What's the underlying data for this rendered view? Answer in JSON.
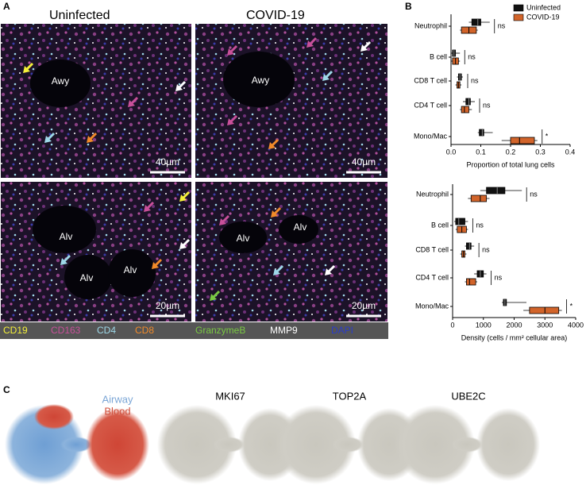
{
  "panel_a": {
    "label": "A",
    "columns": [
      "Uninfected",
      "COVID-19"
    ],
    "tiles": [
      {
        "regions": [
          "Awy"
        ],
        "scale": "40µm"
      },
      {
        "regions": [
          "Awy"
        ],
        "scale": "40µm"
      },
      {
        "regions": [
          "Alv",
          "Alv",
          "Alv"
        ],
        "scale": "20µm"
      },
      {
        "regions": [
          "Alv",
          "Alv"
        ],
        "scale": "20µm"
      }
    ],
    "markers": [
      {
        "name": "CD19",
        "color": "#f4f03a"
      },
      {
        "name": "CD163",
        "color": "#c8509a"
      },
      {
        "name": "CD4",
        "color": "#9ed8e8"
      },
      {
        "name": "CD8",
        "color": "#f08a2a"
      },
      {
        "name": "GranzymeB",
        "color": "#7ac943"
      },
      {
        "name": "MMP9",
        "color": "#ffffff"
      },
      {
        "name": "DAPI",
        "color": "#2a3cc8"
      }
    ]
  },
  "panel_b": {
    "label": "B"
  },
  "chart_data": [
    {
      "type": "box",
      "categories": [
        "Neutrophil",
        "B cell",
        "CD8 T cell",
        "CD4 T cell",
        "Mono/Mac"
      ],
      "series": [
        {
          "name": "Uninfected",
          "color": "#111111",
          "boxes": [
            {
              "min": 0.06,
              "q1": 0.07,
              "median": 0.09,
              "q3": 0.1,
              "max": 0.13
            },
            {
              "min": 0.0,
              "q1": 0.005,
              "median": 0.01,
              "q3": 0.015,
              "max": 0.03
            },
            {
              "min": 0.02,
              "q1": 0.025,
              "median": 0.03,
              "q3": 0.035,
              "max": 0.04
            },
            {
              "min": 0.04,
              "q1": 0.05,
              "median": 0.06,
              "q3": 0.065,
              "max": 0.08
            },
            {
              "min": 0.09,
              "q1": 0.095,
              "median": 0.105,
              "q3": 0.11,
              "max": 0.14
            }
          ]
        },
        {
          "name": "COVID-19",
          "color": "#d2642a",
          "boxes": [
            {
              "min": 0.03,
              "q1": 0.035,
              "median": 0.06,
              "q3": 0.085,
              "max": 0.09
            },
            {
              "min": 0.0,
              "q1": 0.005,
              "median": 0.015,
              "q3": 0.025,
              "max": 0.03
            },
            {
              "min": 0.015,
              "q1": 0.02,
              "median": 0.025,
              "q3": 0.03,
              "max": 0.035
            },
            {
              "min": 0.03,
              "q1": 0.035,
              "median": 0.045,
              "q3": 0.06,
              "max": 0.07
            },
            {
              "min": 0.17,
              "q1": 0.2,
              "median": 0.23,
              "q3": 0.28,
              "max": 0.29
            }
          ]
        }
      ],
      "significance": [
        "ns",
        "ns",
        "ns",
        "ns",
        "*"
      ],
      "xlabel": "Proportion of total lung cells",
      "xlim": [
        0,
        0.4
      ],
      "xticks": [
        {
          "value": 0,
          "label": "0.0"
        },
        0.1,
        0.2,
        0.3,
        0.4
      ],
      "legend": "upper right"
    },
    {
      "type": "box",
      "categories": [
        "Neutrophil",
        "B cell",
        "CD8 T cell",
        "CD4 T cell",
        "Mono/Mac"
      ],
      "series": [
        {
          "name": "Uninfected",
          "color": "#111111",
          "boxes": [
            {
              "min": 900,
              "q1": 1100,
              "median": 1450,
              "q3": 1700,
              "max": 2250
            },
            {
              "min": 50,
              "q1": 100,
              "median": 200,
              "q3": 400,
              "max": 500
            },
            {
              "min": 400,
              "q1": 450,
              "median": 550,
              "q3": 600,
              "max": 700
            },
            {
              "min": 700,
              "q1": 800,
              "median": 900,
              "q3": 1000,
              "max": 1100
            },
            {
              "min": 1600,
              "q1": 1650,
              "median": 1700,
              "q3": 1750,
              "max": 2400
            }
          ]
        },
        {
          "name": "COVID-19",
          "color": "#d2642a",
          "boxes": [
            {
              "min": 500,
              "q1": 600,
              "median": 900,
              "q3": 1100,
              "max": 1200
            },
            {
              "min": 100,
              "q1": 150,
              "median": 300,
              "q3": 450,
              "max": 500
            },
            {
              "min": 250,
              "q1": 300,
              "median": 350,
              "q3": 400,
              "max": 450
            },
            {
              "min": 400,
              "q1": 450,
              "median": 550,
              "q3": 750,
              "max": 800
            },
            {
              "min": 2300,
              "q1": 2500,
              "median": 3000,
              "q3": 3450,
              "max": 3550
            }
          ]
        }
      ],
      "significance": [
        "ns",
        "ns",
        "ns",
        "ns",
        "*"
      ],
      "xlabel": "Density (cells / mm² cellular area)",
      "xlim": [
        0,
        4000
      ],
      "xticks": [
        0,
        1000,
        2000,
        3000,
        4000
      ]
    }
  ],
  "panel_c": {
    "label": "C",
    "groups": [
      {
        "name": "Airway",
        "color": "#7ba6d6"
      },
      {
        "name": "Blood",
        "color": "#d0503c"
      }
    ],
    "genes": [
      "MKI67",
      "TOP2A",
      "UBE2C"
    ]
  }
}
